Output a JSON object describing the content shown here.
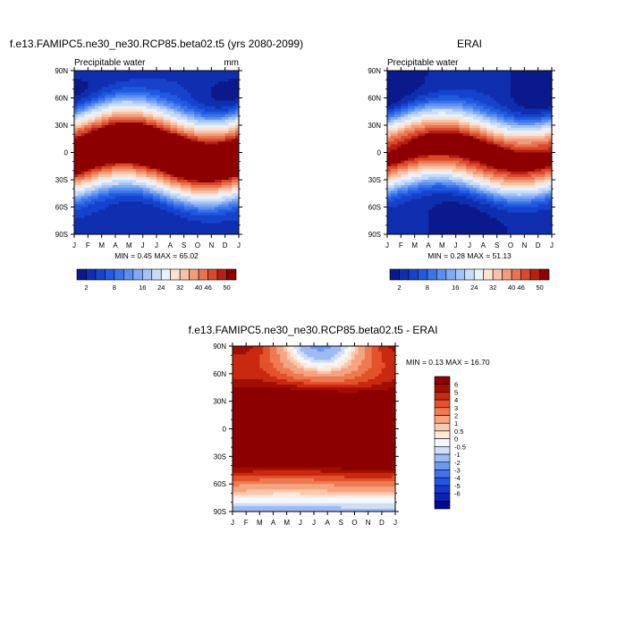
{
  "palette_blue_red": [
    "#0a1a8c",
    "#0f2fb0",
    "#1643cc",
    "#1f5ae0",
    "#3a73ea",
    "#5b8ef0",
    "#7ea9f3",
    "#a3c3f6",
    "#c8dbf8",
    "#eaf1fb",
    "#fbe3d3",
    "#f7c2a6",
    "#f29c78",
    "#eb7450",
    "#d94a2c",
    "#b81f13",
    "#8c0000"
  ],
  "palette_diff": [
    "#000a8c",
    "#0b22b3",
    "#1438d0",
    "#2356e5",
    "#3f74ee",
    "#6b98f2",
    "#9dbbf5",
    "#cfdef9",
    "#f4f7fd",
    "#fde8dc",
    "#f9c9ad",
    "#f5a47f",
    "#ef7a52",
    "#e4522c",
    "#c8290f",
    "#a10f00",
    "#8c0000"
  ],
  "chart_data": [
    {
      "type": "heatmap",
      "title": "f.e13.FAMIPC5.ne30_ne30.RCP85.beta02.t5 (yrs 2080-2099)",
      "subtitle_left": "Precipitable water",
      "subtitle_right": "mm",
      "x_ticks": [
        "J",
        "F",
        "M",
        "A",
        "M",
        "J",
        "J",
        "A",
        "S",
        "O",
        "N",
        "D",
        "J"
      ],
      "y_ticks": [
        "90N",
        "60N",
        "30N",
        "0",
        "30S",
        "60S",
        "90S"
      ],
      "stats": "MIN =   0.45 MAX =  65.02",
      "min": 0.45,
      "max": 65.02,
      "colorbar_labels": [
        "2",
        "8",
        "16",
        "24",
        "32",
        "40",
        "46",
        "50"
      ],
      "colorbar_levels": [
        2,
        4,
        6,
        8,
        10,
        12,
        14,
        16,
        20,
        24,
        28,
        32,
        36,
        40,
        44,
        46,
        48,
        50
      ],
      "grid": false
    },
    {
      "type": "heatmap",
      "title": "ERAI",
      "subtitle_left": "Precipitable water",
      "x_ticks": [
        "J",
        "F",
        "M",
        "A",
        "M",
        "J",
        "J",
        "A",
        "S",
        "O",
        "N",
        "D",
        "J"
      ],
      "y_ticks": [
        "90N",
        "60N",
        "30N",
        "0",
        "30S",
        "60S",
        "90S"
      ],
      "stats": "MIN =   0.28 MAX =  51.13",
      "min": 0.28,
      "max": 51.13,
      "colorbar_labels": [
        "2",
        "8",
        "16",
        "24",
        "32",
        "40",
        "46",
        "50"
      ],
      "colorbar_levels": [
        2,
        4,
        6,
        8,
        10,
        12,
        14,
        16,
        20,
        24,
        28,
        32,
        36,
        40,
        44,
        46,
        48,
        50
      ],
      "grid": false
    },
    {
      "type": "heatmap",
      "title": "f.e13.FAMIPC5.ne30_ne30.RCP85.beta02.t5 - ERAI",
      "x_ticks": [
        "J",
        "F",
        "M",
        "A",
        "M",
        "J",
        "J",
        "A",
        "S",
        "O",
        "N",
        "D",
        "J"
      ],
      "y_ticks": [
        "90N",
        "60N",
        "30N",
        "0",
        "30S",
        "60S",
        "90S"
      ],
      "stats": "MIN =   0.13 MAX =  16.70",
      "min": 0.13,
      "max": 16.7,
      "colorbar_labels": [
        "6",
        "5",
        "4",
        "3",
        "2",
        "1",
        "0.5",
        "0",
        "-0.5",
        "-1",
        "-2",
        "-3",
        "-4",
        "-5",
        "-6"
      ],
      "grid": false
    }
  ]
}
